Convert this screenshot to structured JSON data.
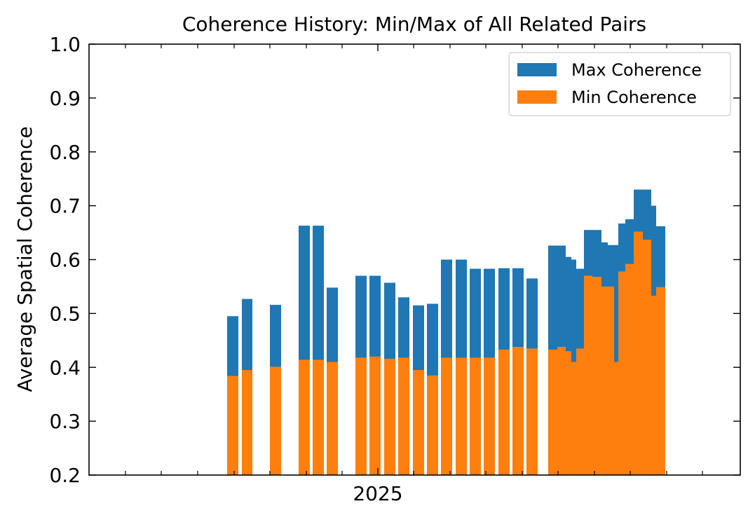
{
  "chart_data": {
    "type": "bar",
    "title": "Coherence History: Min/Max of All Related Pairs",
    "xlabel": "",
    "ylabel": "Average Spatial Coherence",
    "ylim": [
      0.2,
      1.0
    ],
    "yticks": [
      "0.2",
      "0.3",
      "0.4",
      "0.5",
      "0.6",
      "0.7",
      "0.8",
      "0.9",
      "1.0"
    ],
    "xtick_major": "2025",
    "grid": false,
    "legend_position": "top-right",
    "legend": [
      "Max Coherence",
      "Min Coherence"
    ],
    "colors": {
      "max": "#1f77b4",
      "min": "#ff7f0e"
    },
    "series": [
      {
        "name": "Max Coherence",
        "values": [
          0.495,
          0.527,
          0.516,
          0.663,
          0.663,
          0.548,
          0.57,
          0.57,
          0.557,
          0.53,
          0.515,
          0.518,
          0.6,
          0.6,
          0.583,
          0.583,
          0.584,
          0.584,
          0.565,
          0.626,
          0.626,
          0.605,
          0.6,
          0.583,
          0.655,
          0.655,
          0.632,
          0.627,
          0.627,
          0.667,
          0.675,
          0.73,
          0.73,
          0.7,
          0.662
        ]
      },
      {
        "name": "Min Coherence",
        "values": [
          0.384,
          0.395,
          0.401,
          0.414,
          0.414,
          0.41,
          0.418,
          0.42,
          0.416,
          0.418,
          0.395,
          0.385,
          0.418,
          0.418,
          0.418,
          0.418,
          0.433,
          0.438,
          0.435,
          0.433,
          0.438,
          0.43,
          0.41,
          0.435,
          0.57,
          0.568,
          0.55,
          0.55,
          0.41,
          0.578,
          0.592,
          0.652,
          0.637,
          0.533,
          0.549
        ]
      }
    ]
  }
}
